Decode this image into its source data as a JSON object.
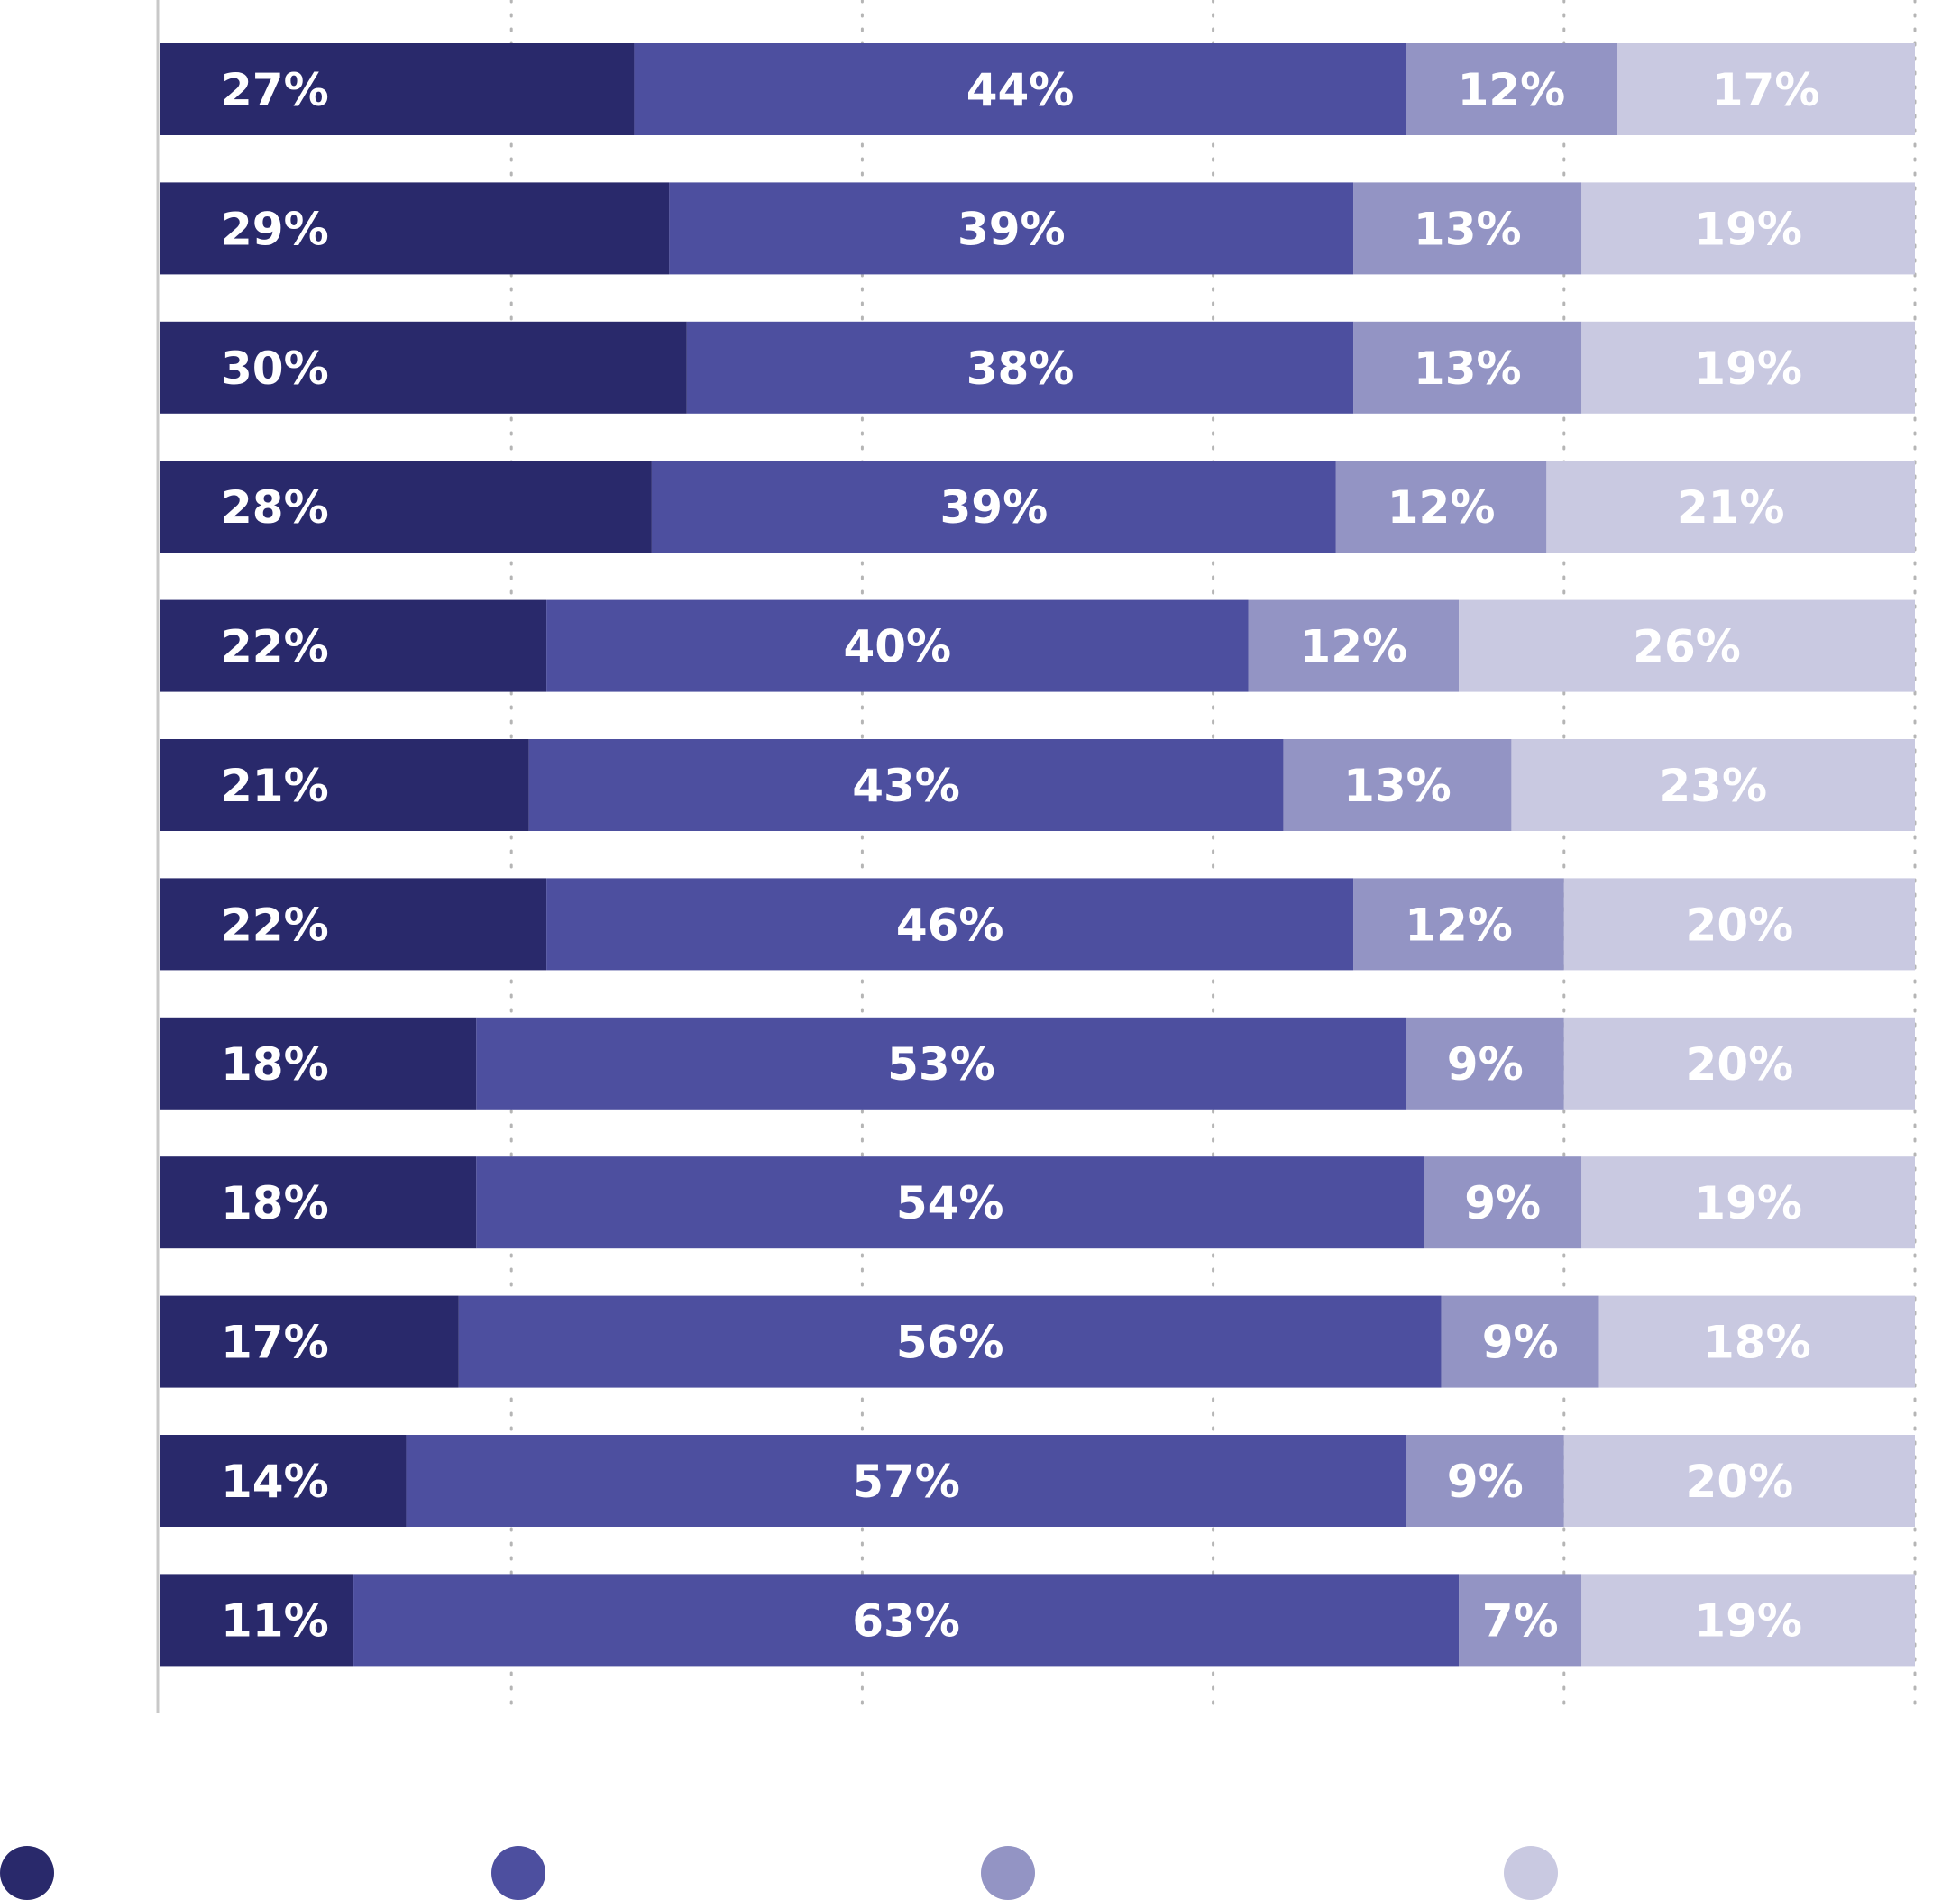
{
  "chart_data": {
    "type": "bar",
    "orientation": "horizontal",
    "stacked": true,
    "normalized": true,
    "xlim": [
      0,
      100
    ],
    "grid": true,
    "legend_position": "bottom",
    "categories": [
      "",
      "",
      "",
      "",
      "",
      "",
      "",
      "",
      "",
      "",
      "",
      ""
    ],
    "series": [
      {
        "color": "#29296b",
        "values": [
          27,
          29,
          30,
          28,
          22,
          21,
          22,
          18,
          18,
          17,
          14,
          11
        ]
      },
      {
        "color": "#4d4f9f",
        "values": [
          44,
          39,
          38,
          39,
          40,
          43,
          46,
          53,
          54,
          56,
          57,
          63
        ]
      },
      {
        "color": "#9394c4",
        "values": [
          12,
          13,
          13,
          12,
          12,
          13,
          12,
          9,
          9,
          9,
          9,
          7
        ]
      },
      {
        "color": "#c9c9e1",
        "values": [
          17,
          19,
          19,
          21,
          26,
          23,
          20,
          20,
          19,
          18,
          20,
          19
        ]
      }
    ],
    "value_format": "{v}%"
  }
}
